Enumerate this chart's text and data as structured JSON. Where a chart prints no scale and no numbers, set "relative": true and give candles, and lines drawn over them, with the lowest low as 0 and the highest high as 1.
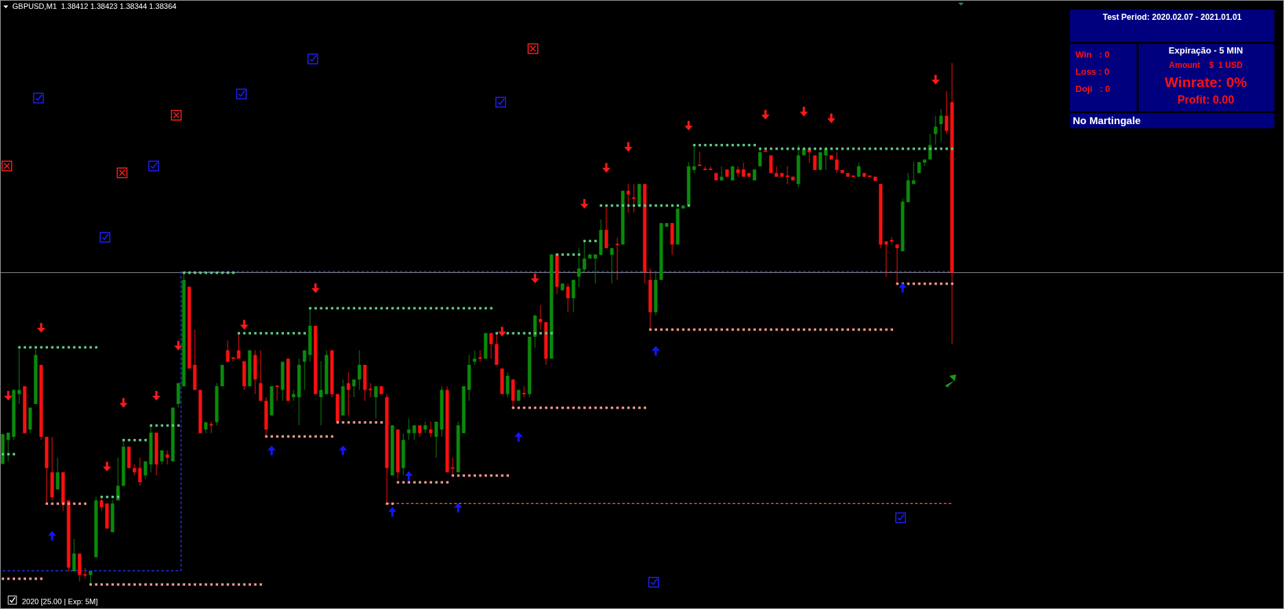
{
  "chart_data": {
    "type": "candlestick",
    "title": "GBPUSD,M1  1.38412 1.38423 1.38344 1.38364",
    "relative": true,
    "categories": [
      null,
      null,
      null,
      null,
      null,
      null,
      null,
      null,
      null,
      null,
      null,
      null,
      null,
      null,
      null,
      null,
      null,
      null,
      null,
      null,
      null,
      null,
      null,
      null,
      null,
      null,
      null,
      null,
      null,
      null,
      null,
      null,
      null,
      null,
      null,
      null,
      null,
      null,
      null,
      null,
      null,
      null,
      null,
      null,
      null,
      null,
      null,
      null,
      null,
      null,
      null,
      null,
      null,
      null,
      null,
      null,
      null,
      null,
      null,
      null,
      null,
      null,
      null,
      null,
      null,
      null,
      null,
      null,
      null,
      null,
      null,
      null,
      null,
      null,
      null,
      null,
      null,
      null,
      null,
      null,
      null,
      null,
      null,
      null,
      null,
      null,
      null,
      null,
      null,
      null,
      null,
      null,
      null,
      null,
      null,
      null,
      null,
      null,
      null,
      null,
      null,
      null,
      null,
      null,
      null,
      null,
      null,
      null,
      null,
      null,
      null,
      null,
      null,
      null,
      null,
      null,
      null,
      null,
      null,
      null,
      null,
      null,
      null,
      null,
      null,
      null,
      null,
      null,
      null,
      null,
      null,
      null,
      null,
      null,
      null,
      null,
      null,
      null,
      null,
      null,
      null,
      null,
      null,
      null,
      null,
      null,
      null,
      null,
      null,
      null,
      null,
      null,
      null,
      null,
      null,
      null,
      null,
      null,
      null,
      null,
      null,
      null,
      null,
      null,
      null,
      null,
      null,
      null,
      null,
      null,
      null,
      null,
      null,
      null
    ],
    "colors": [
      "#0a8a0a",
      "#0a8a0a",
      "#0a8a0a",
      "#0a8a0a",
      "#ff1010",
      "#0a8a0a",
      "#0a8a0a",
      "#ff1010",
      "#ff1010",
      "#ff1010",
      "#0a8a0a",
      "#ff1010",
      "#ff1010",
      "#0a8a0a",
      "#ff1010",
      "#ff1010",
      "#0a8a0a",
      "#0a8a0a",
      "#ff1010",
      "#ff1010",
      "#0a8a0a",
      "#0a8a0a",
      "#0a8a0a",
      "#ff1010",
      "#ff1010",
      "#ff1010",
      "#0a8a0a",
      "#0a8a0a",
      "#ff1010",
      "#0a8a0a",
      "#ff1010",
      "#0a8a0a",
      "#0a8a0a",
      "#0a8a0a",
      "#ff1010",
      "#ff1010",
      "#ff1010",
      "#0a8a0a",
      "#ff1010",
      "#0a8a0a",
      "#0a8a0a",
      "#ff1010",
      "#ff1010",
      "#ff1010",
      "#ff1010",
      "#0a8a0a",
      "#ff1010",
      "#ff1010",
      "#ff1010",
      "#0a8a0a",
      "#ff1010",
      "#0a8a0a",
      "#ff1010",
      "#0a8a0a",
      "#0a8a0a",
      "#0a8a0a",
      "#0a8a0a",
      "#ff1010",
      "#0a8a0a",
      "#0a8a0a",
      "#ff1010",
      "#ff1010",
      "#0a8a0a",
      "#ff1010",
      "#0a8a0a",
      "#0a8a0a",
      "#ff1010",
      "#ff1010",
      "#0a8a0a",
      "#ff1010",
      "#ff1010",
      "#0a8a0a",
      "#ff1010",
      "#0a8a0a",
      "#0a8a0a",
      "#0a8a0a",
      "#ff1010",
      "#0a8a0a",
      "#ff1010",
      "#0a8a0a",
      "#0a8a0a",
      "#ff1010",
      "#ff1010",
      "#0a8a0a",
      "#0a8a0a",
      "#0a8a0a",
      "#0a8a0a",
      "#ff1010",
      "#0a8a0a",
      "#ff1010",
      "#ff1010",
      "#ff1010",
      "#0a8a0a",
      "#ff1010",
      "#0a8a0a",
      "#ff1010",
      "#0a8a0a",
      "#0a8a0a",
      "#ff1010",
      "#ff1010",
      "#0a8a0a",
      "#ff1010",
      "#0a8a0a",
      "#ff1010",
      "#0a8a0a",
      "#0a8a0a",
      "#0a8a0a",
      "#0a8a0a",
      "#0a8a0a",
      "#0a8a0a",
      "#ff1010",
      "#0a8a0a",
      "#ff1010",
      "#0a8a0a",
      "#ff1010",
      "#ff1010",
      "#0a8a0a",
      "#ff1010",
      "#ff1010",
      "#0a8a0a",
      "#0a8a0a",
      "#0a8a0a",
      "#ff1010",
      "#0a8a0a",
      "#0a8a0a",
      "#0a8a0a",
      "#0a8a0a",
      "#ff1010",
      "#ff1010",
      "#ff1010",
      "#ff1010",
      "#0a8a0a",
      "#ff1010",
      "#0a8a0a",
      "#ff1010",
      "#ff1010",
      "#ff1010",
      "#0a8a0a",
      "#0a8a0a",
      "#ff1010",
      "#ff1010",
      "#ff1010",
      "#ff1010",
      "#ff1010",
      "#ff1010",
      "#0a8a0a",
      "#0a8a0a",
      "#ff1010",
      "#ff1010",
      "#0a8a0a",
      "#0a8a0a",
      "#ff1010",
      "#ff1010",
      "#ff1010",
      "#ff1010",
      "#ff1010",
      "#0a8a0a",
      "#ff1010",
      "#ff1010",
      "#ff1010",
      "#ff1010",
      "#ff1010",
      "#ff1010",
      "#ff1010",
      "#0a8a0a",
      "#0a8a0a",
      "#0a8a0a",
      "#0a8a0a",
      "#0a8a0a",
      "#0a8a0a",
      "#0a8a0a",
      "#0a8a0a",
      "#ff1010",
      "#ff1010"
    ],
    "ohlc": [
      [
        0.231,
        0.29,
        0.23,
        0.288
      ],
      [
        0.277,
        0.291,
        0.236,
        0.291
      ],
      [
        0.283,
        0.374,
        0.277,
        0.373
      ],
      [
        0.365,
        0.452,
        0.346,
        0.373
      ],
      [
        0.38,
        0.38,
        0.29,
        0.29
      ],
      [
        0.297,
        0.339,
        0.29,
        0.339
      ],
      [
        0.346,
        0.452,
        0.346,
        0.44
      ],
      [
        0.421,
        0.421,
        0.277,
        0.283
      ],
      [
        0.283,
        0.283,
        0.155,
        0.223
      ],
      [
        0.215,
        0.283,
        0.161,
        0.167
      ],
      [
        0.182,
        0.243,
        0.182,
        0.215
      ],
      [
        0.215,
        0.215,
        0.141,
        0.155
      ],
      [
        0.161,
        0.161,
        0.025,
        0.032
      ],
      [
        0.025,
        0.087,
        0.025,
        0.059
      ],
      [
        0.059,
        0.059,
        0.005,
        0.018
      ],
      [
        0.018,
        0.032,
        0.011,
        0.017
      ],
      [
        0.018,
        0.025,
        0,
        0.025
      ],
      [
        0.052,
        0.168,
        0.052,
        0.161
      ],
      [
        0.161,
        0.165,
        0.141,
        0.148
      ],
      [
        0.155,
        0.155,
        0.107,
        0.107
      ],
      [
        0.1,
        0.161,
        0.1,
        0.155
      ],
      [
        0.161,
        0.243,
        0.161,
        0.189
      ],
      [
        0.189,
        0.275,
        0.189,
        0.264
      ],
      [
        0.264,
        0.264,
        0.223,
        0.223
      ],
      [
        0.223,
        0.231,
        0.209,
        0.215
      ],
      [
        0.223,
        0.243,
        0.189,
        0.196
      ],
      [
        0.209,
        0.236,
        0.202,
        0.236
      ],
      [
        0.23,
        0.304,
        0.215,
        0.291
      ],
      [
        0.291,
        0.291,
        0.209,
        0.23
      ],
      [
        0.236,
        0.257,
        0.23,
        0.257
      ],
      [
        0.249,
        0.257,
        0.23,
        0.243
      ],
      [
        0.236,
        0.339,
        0.236,
        0.339
      ],
      [
        0.346,
        0.386,
        0.339,
        0.386
      ],
      [
        0.38,
        0.599,
        0.38,
        0.584
      ],
      [
        0.571,
        0.571,
        0.414,
        0.414
      ],
      [
        0.421,
        0.489,
        0.373,
        0.373
      ],
      [
        0.373,
        0.373,
        0.29,
        0.29
      ],
      [
        0.297,
        0.311,
        0.29,
        0.311
      ],
      [
        0.306,
        0.312,
        0.29,
        0.305
      ],
      [
        0.311,
        0.386,
        0.305,
        0.38
      ],
      [
        0.38,
        0.421,
        0.38,
        0.421
      ],
      [
        0.449,
        0.468,
        0.427,
        0.427
      ],
      [
        0.434,
        0.434,
        0.427,
        0.433
      ],
      [
        0.449,
        0.482,
        0.433,
        0.433
      ],
      [
        0.428,
        0.428,
        0.373,
        0.38
      ],
      [
        0.38,
        0.449,
        0.38,
        0.449
      ],
      [
        0.44,
        0.449,
        0.365,
        0.393
      ],
      [
        0.386,
        0.449,
        0.352,
        0.352
      ],
      [
        0.352,
        0.359,
        0.286,
        0.297
      ],
      [
        0.324,
        0.38,
        0.324,
        0.38
      ],
      [
        0.38,
        0.381,
        0.352,
        0.379
      ],
      [
        0.373,
        0.427,
        0.352,
        0.427
      ],
      [
        0.433,
        0.433,
        0.352,
        0.352
      ],
      [
        0.359,
        0.373,
        0.352,
        0.365
      ],
      [
        0.359,
        0.433,
        0.305,
        0.421
      ],
      [
        0.427,
        0.449,
        0.373,
        0.449
      ],
      [
        0.44,
        0.53,
        0.427,
        0.496
      ],
      [
        0.496,
        0.496,
        0.365,
        0.365
      ],
      [
        0.359,
        0.428,
        0.305,
        0.373
      ],
      [
        0.365,
        0.449,
        0.365,
        0.44
      ],
      [
        0.449,
        0.449,
        0.359,
        0.365
      ],
      [
        0.365,
        0.365,
        0.312,
        0.312
      ],
      [
        0.324,
        0.393,
        0.324,
        0.38
      ],
      [
        0.386,
        0.407,
        0.324,
        0.373
      ],
      [
        0.38,
        0.393,
        0.359,
        0.393
      ],
      [
        0.393,
        0.449,
        0.373,
        0.421
      ],
      [
        0.421,
        0.421,
        0.352,
        0.373
      ],
      [
        0.374,
        0.386,
        0.359,
        0.373
      ],
      [
        0.359,
        0.38,
        0.318,
        0.38
      ],
      [
        0.38,
        0.38,
        0.365,
        0.365
      ],
      [
        0.359,
        0.365,
        0.156,
        0.223
      ],
      [
        0.209,
        0.305,
        0.209,
        0.305
      ],
      [
        0.297,
        0.297,
        0.202,
        0.215
      ],
      [
        0.223,
        0.29,
        0.209,
        0.277
      ],
      [
        0.29,
        0.318,
        0.277,
        0.297
      ],
      [
        0.29,
        0.305,
        0.277,
        0.305
      ],
      [
        0.305,
        0.305,
        0.283,
        0.29
      ],
      [
        0.297,
        0.312,
        0.29,
        0.305
      ],
      [
        0.297,
        0.312,
        0.283,
        0.29
      ],
      [
        0.283,
        0.312,
        0.243,
        0.312
      ],
      [
        0.297,
        0.38,
        0.283,
        0.373
      ],
      [
        0.373,
        0.38,
        0.215,
        0.215
      ],
      [
        0.223,
        0.243,
        0.209,
        0.222
      ],
      [
        0.215,
        0.312,
        0.215,
        0.305
      ],
      [
        0.29,
        0.38,
        0.29,
        0.38
      ],
      [
        0.373,
        0.44,
        0.352,
        0.421
      ],
      [
        0.427,
        0.449,
        0.421,
        0.433
      ],
      [
        0.434,
        0.449,
        0.427,
        0.433
      ],
      [
        0.433,
        0.482,
        0.433,
        0.482
      ],
      [
        0.482,
        0.482,
        0.433,
        0.461
      ],
      [
        0.461,
        0.482,
        0.421,
        0.421
      ],
      [
        0.414,
        0.414,
        0.365,
        0.365
      ],
      [
        0.365,
        0.407,
        0.359,
        0.4
      ],
      [
        0.393,
        0.393,
        0.34,
        0.352
      ],
      [
        0.352,
        0.373,
        0.352,
        0.373
      ],
      [
        0.366,
        0.38,
        0.359,
        0.365
      ],
      [
        0.365,
        0.475,
        0.359,
        0.475
      ],
      [
        0.475,
        0.516,
        0.454,
        0.516
      ],
      [
        0.509,
        0.536,
        0.489,
        0.503
      ],
      [
        0.503,
        0.503,
        0.421,
        0.433
      ],
      [
        0.433,
        0.633,
        0.433,
        0.633
      ],
      [
        0.633,
        0.633,
        0.557,
        0.571
      ],
      [
        0.564,
        0.577,
        0.564,
        0.577
      ],
      [
        0.571,
        0.577,
        0.522,
        0.549
      ],
      [
        0.549,
        0.584,
        0.522,
        0.584
      ],
      [
        0.59,
        0.645,
        0.571,
        0.606
      ],
      [
        0.604,
        0.659,
        0.599,
        0.625
      ],
      [
        0.625,
        0.633,
        0.625,
        0.633
      ],
      [
        0.625,
        0.633,
        0.577,
        0.633
      ],
      [
        0.632,
        0.7,
        0.632,
        0.68
      ],
      [
        0.68,
        0.726,
        0.645,
        0.645
      ],
      [
        0.632,
        0.645,
        0.577,
        0.645
      ],
      [
        0.652,
        0.665,
        0.584,
        0.651
      ],
      [
        0.652,
        0.755,
        0.652,
        0.755
      ],
      [
        0.755,
        0.768,
        0.713,
        0.748
      ],
      [
        0.741,
        0.768,
        0.713,
        0.74
      ],
      [
        0.726,
        0.768,
        0.726,
        0.768
      ],
      [
        0.768,
        0.768,
        0.577,
        0.599
      ],
      [
        0.584,
        0.606,
        0.489,
        0.522
      ],
      [
        0.522,
        0.597,
        0.516,
        0.584
      ],
      [
        0.584,
        0.693,
        0.584,
        0.693
      ],
      [
        0.686,
        0.693,
        0.686,
        0.693
      ],
      [
        0.693,
        0.693,
        0.632,
        0.652
      ],
      [
        0.652,
        0.721,
        0.652,
        0.721
      ],
      [
        0.721,
        0.727,
        0.721,
        0.727
      ],
      [
        0.727,
        0.81,
        0.727,
        0.802
      ],
      [
        0.795,
        0.843,
        0.789,
        0.802
      ],
      [
        0.804,
        0.83,
        0.802,
        0.802
      ],
      [
        0.796,
        0.802,
        0.795,
        0.795
      ],
      [
        0.796,
        0.802,
        0.795,
        0.795
      ],
      [
        0.789,
        0.789,
        0.775,
        0.775
      ],
      [
        0.775,
        0.802,
        0.775,
        0.782
      ],
      [
        0.796,
        0.796,
        0.782,
        0.782
      ],
      [
        0.775,
        0.802,
        0.775,
        0.802
      ],
      [
        0.796,
        0.802,
        0.782,
        0.789
      ],
      [
        0.796,
        0.809,
        0.782,
        0.782
      ],
      [
        0.789,
        0.789,
        0.782,
        0.782
      ],
      [
        0.775,
        0.796,
        0.775,
        0.796
      ],
      [
        0.802,
        0.836,
        0.802,
        0.829
      ],
      [
        0.831,
        0.831,
        0.83,
        0.83
      ],
      [
        0.823,
        0.823,
        0.789,
        0.789
      ],
      [
        0.789,
        0.802,
        0.782,
        0.782
      ],
      [
        0.789,
        0.789,
        0.782,
        0.782
      ],
      [
        0.783,
        0.802,
        0.768,
        0.782
      ],
      [
        0.782,
        0.782,
        0.775,
        0.775
      ],
      [
        0.768,
        0.843,
        0.761,
        0.823
      ],
      [
        0.823,
        0.836,
        0.823,
        0.836
      ],
      [
        0.836,
        0.836,
        0.809,
        0.829
      ],
      [
        0.823,
        0.823,
        0.795,
        0.795
      ],
      [
        0.795,
        0.829,
        0.795,
        0.829
      ],
      [
        0.823,
        0.836,
        0.795,
        0.836
      ],
      [
        0.823,
        0.823,
        0.815,
        0.815
      ],
      [
        0.815,
        0.829,
        0.789,
        0.795
      ],
      [
        0.795,
        0.795,
        0.789,
        0.789
      ],
      [
        0.789,
        0.789,
        0.782,
        0.782
      ],
      [
        0.783,
        0.783,
        0.782,
        0.782
      ],
      [
        0.782,
        0.809,
        0.782,
        0.802
      ],
      [
        0.789,
        0.789,
        0.782,
        0.782
      ],
      [
        0.783,
        0.783,
        0.782,
        0.782
      ],
      [
        0.782,
        0.782,
        0.774,
        0.774
      ],
      [
        0.768,
        0.768,
        0.645,
        0.652
      ],
      [
        0.658,
        0.658,
        0.59,
        0.652
      ],
      [
        0.659,
        0.666,
        0.652,
        0.658
      ],
      [
        0.652,
        0.652,
        0.577,
        0.645
      ],
      [
        0.639,
        0.74,
        0.639,
        0.734
      ],
      [
        0.733,
        0.789,
        0.733,
        0.775
      ],
      [
        0.768,
        0.81,
        0.768,
        0.775
      ],
      [
        0.789,
        0.81,
        0.789,
        0.81
      ],
      [
        0.809,
        0.815,
        0.802,
        0.815
      ],
      [
        0.815,
        0.864,
        0.815,
        0.843
      ],
      [
        0.864,
        0.899,
        0.843,
        0.878
      ],
      [
        0.883,
        0.912,
        0.849,
        0.899
      ],
      [
        0.899,
        0.946,
        0.864,
        0.87
      ],
      [
        0.925,
        1,
        0.461,
        0.598
      ]
    ],
    "series": [
      {
        "type": "scatter",
        "marker": "square",
        "color": "#5fc98a",
        "values": [
          0.25,
          0.25,
          0.25,
          0.455,
          0.455,
          0.455,
          0.455,
          0.455,
          0.455,
          0.455,
          0.455,
          0.455,
          0.455,
          0.455,
          0.455,
          0.455,
          0.455,
          0.455,
          0.168,
          0.168,
          0.168,
          0.168,
          0.277,
          0.277,
          0.277,
          0.277,
          0.277,
          0.305,
          0.305,
          0.305,
          0.305,
          0.305,
          0.305,
          0.598,
          0.598,
          0.598,
          0.598,
          0.598,
          0.598,
          0.598,
          0.598,
          0.598,
          0.598,
          0.482,
          0.482,
          0.482,
          0.482,
          0.482,
          0.482,
          0.482,
          0.482,
          0.482,
          0.482,
          0.482,
          0.482,
          0.482,
          0.53,
          0.53,
          0.53,
          0.53,
          0.53,
          0.53,
          0.53,
          0.53,
          0.53,
          0.53,
          0.53,
          0.53,
          0.53,
          0.53,
          0.53,
          0.53,
          0.53,
          0.53,
          0.53,
          0.53,
          0.53,
          0.53,
          0.53,
          0.53,
          0.53,
          0.53,
          0.53,
          0.53,
          0.53,
          0.53,
          0.53,
          0.53,
          0.53,
          0.53,
          0.482,
          null,
          0.482,
          0.482,
          0.482,
          0.482,
          0.482,
          0.482,
          0.482,
          0.482,
          0.482,
          0.633,
          0.633,
          0.633,
          0.633,
          0.633,
          0.659,
          0.659,
          0.659,
          0.727,
          0.727,
          0.727,
          0.727,
          0.727,
          0.727,
          0.727,
          0.727,
          0.727,
          0.727,
          0.727,
          0.727,
          0.727,
          0.727,
          0.727,
          null,
          0.727,
          0.843,
          0.843,
          0.843,
          0.843,
          0.843,
          0.843,
          0.843,
          0.843,
          0.843,
          0.843,
          0.843,
          0.843,
          0.836,
          0.836,
          0.836,
          0.836,
          0.836,
          0.836,
          0.836,
          0.836,
          0.836,
          0.836,
          0.836,
          0.836,
          0.836,
          0.836,
          0.836,
          0.836,
          0.836,
          0.836,
          0.836,
          0.836,
          0.836,
          0.836,
          0.836,
          0.836,
          0.836,
          0.836,
          0.836,
          0.836,
          0.836,
          0.836,
          0.836,
          0.836,
          0.836,
          0.836,
          0.836,
          0.836
        ]
      },
      {
        "type": "scatter",
        "marker": "square",
        "color": "#f29a86",
        "values": [
          0.011,
          0.011,
          0.011,
          0.011,
          0.011,
          0.011,
          0.011,
          0.011,
          0.155,
          0.155,
          0.155,
          0.155,
          0.155,
          0.155,
          0.155,
          0.155,
          0,
          0,
          0,
          0,
          0,
          0,
          0,
          0,
          0,
          0,
          0,
          0,
          0,
          0,
          0,
          0,
          0,
          0,
          0,
          0,
          0,
          0,
          0,
          0,
          0,
          0,
          0,
          0,
          0,
          0,
          0,
          0,
          0.284,
          0.284,
          0.284,
          0.284,
          0.284,
          0.284,
          0.284,
          0.284,
          0.284,
          0.284,
          0.284,
          0.284,
          0.284,
          0.311,
          0.311,
          0.311,
          0.311,
          0.311,
          0.311,
          0.311,
          0.311,
          0.311,
          0.155,
          0.155,
          0.196,
          0.196,
          0.196,
          0.196,
          0.196,
          0.196,
          0.196,
          0.196,
          0.196,
          0.196,
          0.209,
          0.209,
          0.209,
          0.209,
          0.209,
          0.209,
          0.209,
          0.209,
          0.209,
          0.209,
          0.209,
          0.339,
          0.339,
          0.339,
          0.339,
          0.339,
          0.339,
          0.339,
          0.339,
          0.339,
          0.339,
          0.339,
          0.339,
          0.339,
          0.339,
          0.339,
          0.339,
          0.339,
          0.339,
          0.339,
          0.339,
          0.339,
          0.339,
          0.339,
          0.339,
          0.339,
          0.489,
          0.489,
          0.489,
          0.489,
          0.489,
          0.489,
          0.489,
          0.489,
          0.489,
          0.489,
          0.489,
          0.489,
          0.489,
          0.489,
          0.489,
          0.489,
          0.489,
          0.489,
          0.489,
          0.489,
          0.489,
          0.489,
          0.489,
          0.489,
          0.489,
          0.489,
          0.489,
          0.489,
          0.489,
          0.489,
          0.489,
          0.489,
          0.489,
          0.489,
          0.489,
          0.489,
          0.489,
          0.489,
          0.489,
          0.489,
          0.489,
          0.489,
          0.489,
          0.489,
          0.489,
          0.577,
          0.577,
          0.577,
          0.577,
          0.577,
          0.577,
          0.577,
          0.577,
          0.577,
          0.577,
          0.577
        ]
      },
      {
        "type": "step",
        "line_style": "dashed",
        "color": "#2233dd",
        "values": [
          0.026,
          0.026,
          0.026,
          0.026,
          0.026,
          0.026,
          0.026,
          0.026,
          0.026,
          0.026,
          0.026,
          0.026,
          0.026,
          0.026,
          0.026,
          0.026,
          0.026,
          0.026,
          0.026,
          0.026,
          0.026,
          0.026,
          0.026,
          0.026,
          0.026,
          0.026,
          0.026,
          0.026,
          0.026,
          0.026,
          0.026,
          0.026,
          0.026,
          0.6,
          0.6,
          0.6,
          0.6,
          0.6,
          0.6,
          0.6,
          0.6,
          0.6,
          0.6,
          0.6,
          0.6,
          0.6,
          0.6,
          0.6,
          0.6,
          0.6,
          0.6,
          0.6,
          0.6,
          0.6,
          0.6,
          0.6,
          0.6,
          0.6,
          0.6,
          0.6,
          0.6,
          0.6,
          0.6,
          0.6,
          0.6,
          0.6,
          0.6,
          0.6,
          0.6,
          0.6,
          0.6,
          0.6,
          0.6,
          0.6,
          0.6,
          0.6,
          0.6,
          0.6,
          0.6,
          0.6,
          0.6,
          0.6,
          0.6,
          0.6,
          0.6,
          0.6,
          0.6,
          0.6,
          0.6,
          0.6,
          0.6,
          0.6,
          0.6,
          0.6,
          0.6,
          0.6,
          0.6,
          0.6,
          0.6,
          0.6,
          0.6,
          0.6,
          0.6,
          0.6,
          0.6,
          0.6,
          0.6,
          0.6,
          0.6,
          0.6,
          0.6,
          0.6,
          0.6,
          0.6,
          0.6,
          0.6,
          0.6,
          0.6,
          0.6,
          0.6,
          0.6,
          0.6,
          0.6,
          0.6,
          0.6,
          0.6,
          0.6,
          0.6,
          0.6,
          0.6,
          0.6,
          0.6,
          0.6,
          0.6,
          0.6,
          0.6,
          0.6,
          0.6,
          0.6,
          0.6,
          0.6,
          0.6,
          0.6,
          0.6,
          0.6,
          0.6,
          0.6,
          0.6,
          0.6,
          0.6,
          0.6,
          0.6,
          0.6,
          0.6,
          0.6,
          0.6,
          0.6,
          0.6,
          0.6,
          0.6,
          0.6,
          0.6,
          0.6,
          0.6,
          0.6,
          0.6,
          0.6,
          0.6,
          0.6,
          0.6,
          0.6,
          0.6,
          0.6,
          0.6
        ]
      },
      {
        "type": "line",
        "line_style": "dashed",
        "color": "#e0503c",
        "values": [
          null,
          null,
          null,
          null,
          null,
          null,
          null,
          null,
          null,
          null,
          null,
          null,
          null,
          null,
          null,
          null,
          null,
          null,
          null,
          null,
          null,
          null,
          null,
          null,
          null,
          null,
          null,
          null,
          null,
          null,
          null,
          null,
          null,
          null,
          null,
          null,
          null,
          null,
          null,
          null,
          null,
          null,
          null,
          null,
          null,
          null,
          null,
          null,
          null,
          null,
          null,
          null,
          null,
          null,
          null,
          null,
          null,
          null,
          null,
          null,
          null,
          null,
          null,
          null,
          null,
          null,
          null,
          null,
          null,
          null,
          0.155,
          0.155,
          0.155,
          0.155,
          0.155,
          0.155,
          0.155,
          0.155,
          0.155,
          0.155,
          0.155,
          0.155,
          0.155,
          0.155,
          0.155,
          0.155,
          0.155,
          0.155,
          0.155,
          0.155,
          0.155,
          0.155,
          0.155,
          0.155,
          0.155,
          0.155,
          0.155,
          0.155,
          0.155,
          0.155,
          0.155,
          0.155,
          0.155,
          0.155,
          0.155,
          0.155,
          0.155,
          0.155,
          0.155,
          0.155,
          0.155,
          0.155,
          0.155,
          0.155,
          0.155,
          0.155,
          0.155,
          0.155,
          0.155,
          0.155,
          0.155,
          0.155,
          0.155,
          0.155,
          0.155,
          0.155,
          0.155,
          0.155,
          0.155,
          0.155,
          0.155,
          0.155,
          0.155,
          0.155,
          0.155,
          0.155,
          0.155,
          0.155,
          0.155,
          0.155,
          0.155,
          0.155,
          0.155,
          0.155,
          0.155,
          0.155,
          0.155,
          0.155,
          0.155,
          0.155,
          0.155,
          0.155,
          0.155,
          0.155,
          0.155,
          0.155,
          0.155,
          0.155,
          0.155,
          0.155,
          0.155,
          0.155,
          0.155,
          0.155,
          0.155,
          0.155,
          0.155,
          0.155,
          0.155,
          0.155,
          0.155,
          0.155,
          0.155,
          0.155
        ]
      },
      {
        "type": "scatter",
        "marker": "triangle-down",
        "color": "#ff1a1a",
        "values": [
          null,
          0.362,
          null,
          null,
          null,
          null,
          null,
          0.492,
          null,
          null,
          null,
          null,
          null,
          null,
          null,
          null,
          null,
          null,
          null,
          0.226,
          null,
          null,
          0.348,
          null,
          null,
          null,
          null,
          null,
          0.362,
          null,
          null,
          null,
          0.458,
          null,
          null,
          null,
          null,
          null,
          null,
          null,
          null,
          null,
          null,
          null,
          0.498,
          null,
          null,
          null,
          null,
          null,
          null,
          null,
          null,
          null,
          null,
          null,
          null,
          0.568,
          null,
          null,
          null,
          null,
          null,
          null,
          null,
          null,
          null,
          null,
          null,
          null,
          null,
          null,
          null,
          null,
          null,
          null,
          null,
          null,
          null,
          null,
          null,
          null,
          null,
          null,
          null,
          null,
          null,
          null,
          null,
          null,
          null,
          0.485,
          null,
          null,
          null,
          null,
          null,
          0.587,
          null,
          null,
          null,
          null,
          null,
          null,
          null,
          null,
          0.73,
          null,
          null,
          null,
          0.799,
          null,
          null,
          null,
          0.839,
          null,
          null,
          null,
          null,
          null,
          null,
          null,
          null,
          null,
          null,
          0.88,
          null,
          null,
          null,
          null,
          null,
          null,
          null,
          null,
          null,
          null,
          null,
          null,
          null,
          0.901,
          null,
          null,
          null,
          null,
          null,
          null,
          0.907,
          null,
          null,
          null,
          null,
          0.894,
          null,
          null,
          null,
          null,
          null,
          null,
          null,
          null,
          null,
          null,
          null,
          null,
          null,
          null,
          null,
          null,
          null,
          null,
          0.968,
          null,
          null,
          null
        ]
      },
      {
        "type": "scatter",
        "marker": "triangle",
        "color": "#1515ff",
        "values": [
          null,
          null,
          null,
          null,
          null,
          null,
          null,
          null,
          null,
          0.093,
          null,
          null,
          null,
          null,
          null,
          null,
          null,
          null,
          null,
          null,
          null,
          null,
          null,
          null,
          null,
          null,
          null,
          null,
          null,
          null,
          null,
          null,
          null,
          null,
          null,
          null,
          null,
          null,
          null,
          null,
          null,
          null,
          null,
          null,
          null,
          null,
          null,
          null,
          null,
          0.257,
          null,
          null,
          null,
          null,
          null,
          null,
          null,
          null,
          null,
          null,
          null,
          null,
          0.257,
          null,
          null,
          null,
          null,
          null,
          null,
          null,
          null,
          0.139,
          null,
          null,
          0.208,
          null,
          null,
          null,
          null,
          null,
          null,
          null,
          null,
          0.147,
          null,
          null,
          null,
          null,
          null,
          null,
          null,
          null,
          null,
          null,
          0.283,
          null,
          null,
          null,
          null,
          null,
          null,
          null,
          null,
          null,
          null,
          null,
          null,
          null,
          null,
          null,
          null,
          null,
          null,
          null,
          null,
          null,
          null,
          null,
          null,
          0.448,
          null,
          null,
          null,
          null,
          null,
          null,
          null,
          null,
          null,
          null,
          null,
          null,
          null,
          null,
          null,
          null,
          null,
          null,
          null,
          null,
          null,
          null,
          null,
          null,
          null,
          null,
          null,
          null,
          null,
          null,
          null,
          null,
          null,
          null,
          null,
          null,
          null,
          null,
          null,
          null,
          null,
          null,
          null,
          null,
          0.569,
          null,
          null,
          null,
          null,
          null,
          null,
          null,
          null,
          null
        ]
      }
    ],
    "ref_lines": [
      {
        "axis": "y",
        "value": 0.598,
        "color": "#8c8c8c"
      }
    ],
    "annotations": [
      "Test Period: 2020.02.07 - 2021.01.01",
      "Win   : 0",
      "Loss : 0",
      "Doji   : 0",
      "Expiração - 5 MIN",
      "Amount    $  1 USD",
      "Winrate: 0%",
      "Profit: 0.00",
      "No Martingale",
      "2020 [25.00 | Exp: 5M]"
    ]
  }
}
